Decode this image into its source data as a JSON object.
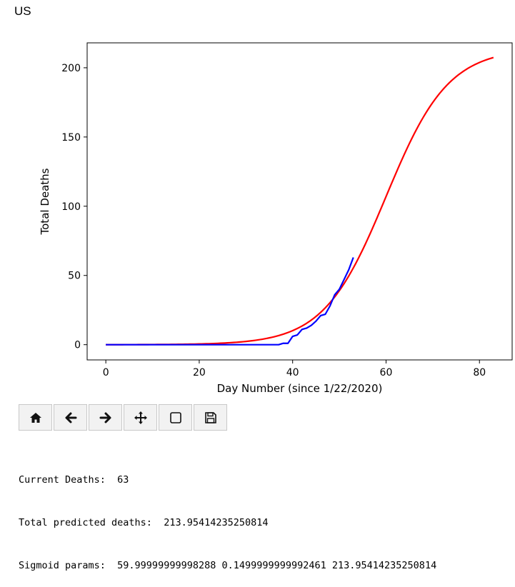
{
  "window": {
    "title": "US"
  },
  "toolbar": {
    "buttons": [
      {
        "name": "home",
        "icon": "home-icon"
      },
      {
        "name": "back",
        "icon": "arrow-left-icon"
      },
      {
        "name": "forward",
        "icon": "arrow-right-icon"
      },
      {
        "name": "pan",
        "icon": "move-icon"
      },
      {
        "name": "zoom",
        "icon": "zoom-rect-icon"
      },
      {
        "name": "save",
        "icon": "save-icon"
      }
    ]
  },
  "console": {
    "line1": "Current Deaths:  63",
    "line2": "Total predicted deaths:  213.95414235250814",
    "line3": "Sigmoid params:  59.99999999998288 0.1499999999992461 213.95414235250814"
  },
  "chart_data": {
    "type": "line",
    "title": "",
    "xlabel": "Day Number (since 1/22/2020)",
    "ylabel": "Total Deaths",
    "xlim": [
      -4,
      87
    ],
    "ylim": [
      -11,
      218
    ],
    "xticks": [
      0,
      20,
      40,
      60,
      80
    ],
    "yticks": [
      0,
      50,
      100,
      150,
      200
    ],
    "grid": false,
    "series": [
      {
        "color": "#ff0000",
        "model": "sigmoid",
        "params": {
          "x0": 59.99999999998288,
          "k": 0.1499999999992461,
          "L": 213.95414235250814
        },
        "x_range": [
          0,
          83
        ]
      },
      {
        "color": "#0000ff",
        "x": [
          0,
          5,
          10,
          15,
          20,
          25,
          30,
          35,
          37,
          38,
          39,
          40,
          41,
          42,
          43,
          44,
          45,
          46,
          47,
          48,
          49,
          50,
          51,
          52,
          53
        ],
        "y": [
          0,
          0,
          0,
          0,
          0,
          0,
          0,
          0,
          0,
          1,
          1,
          6,
          7,
          11,
          12,
          14,
          17,
          21,
          22,
          28,
          36,
          40,
          47,
          54,
          63
        ]
      }
    ]
  }
}
